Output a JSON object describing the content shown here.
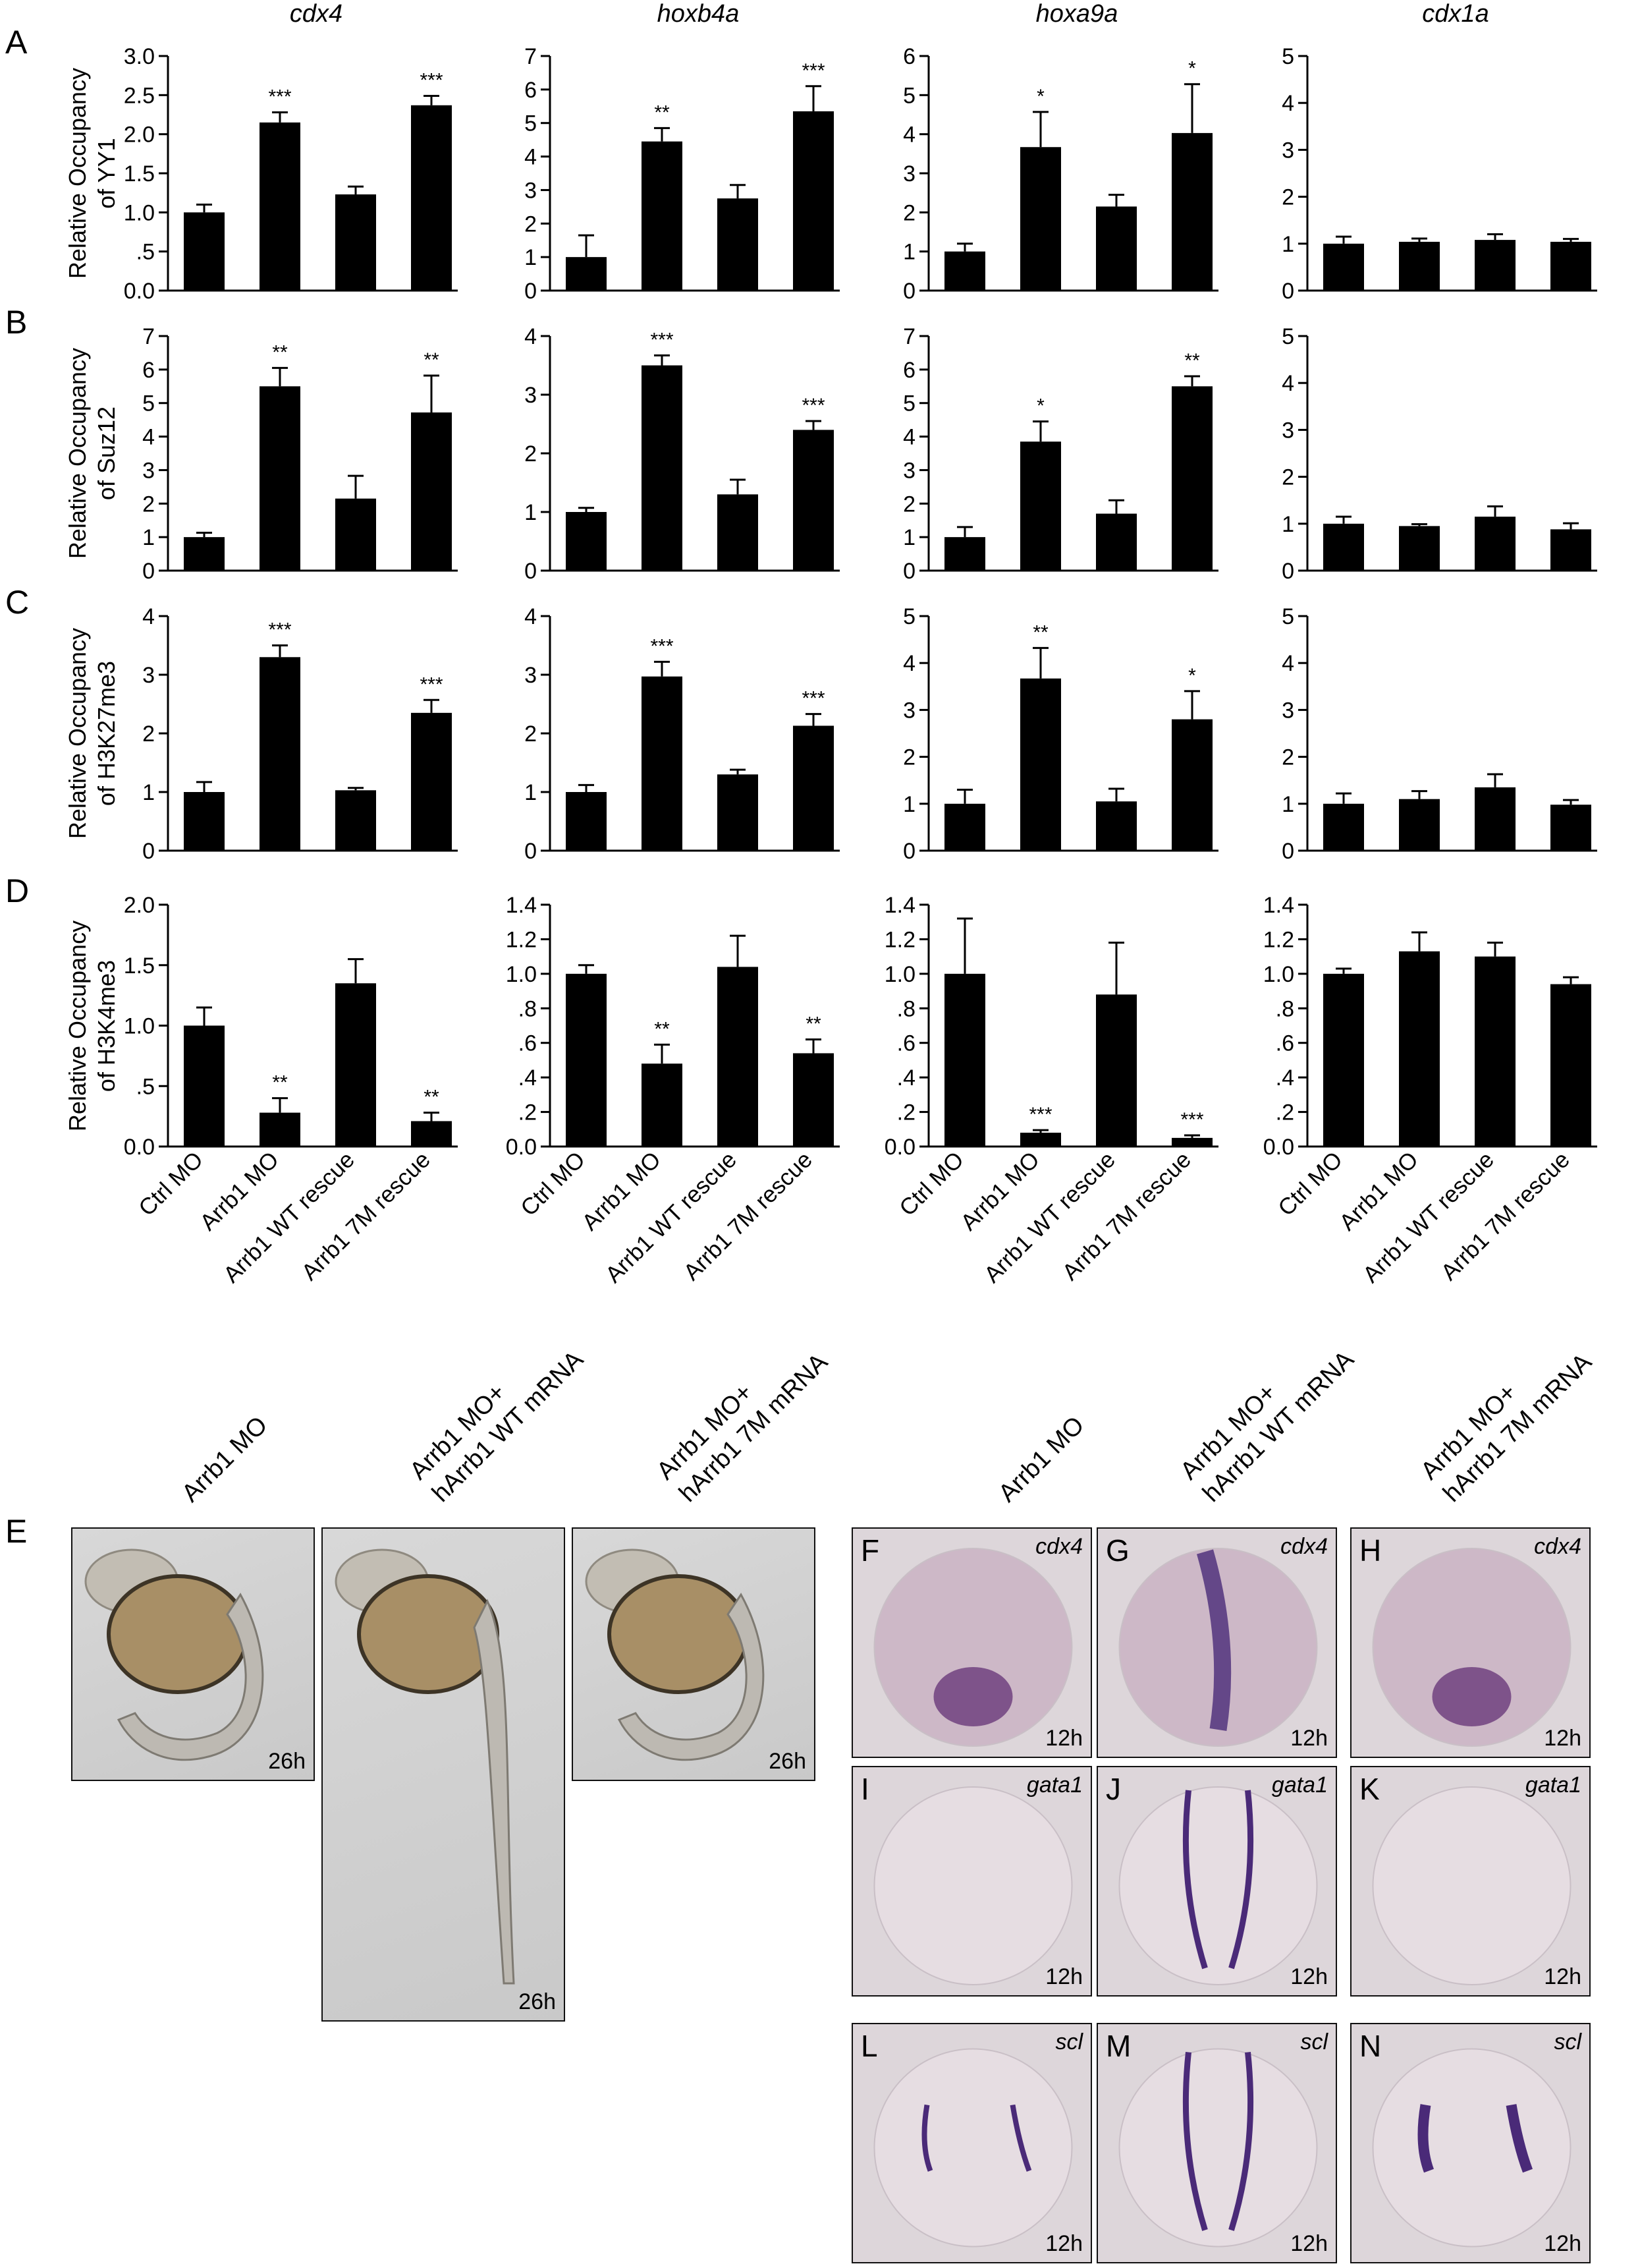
{
  "genes": [
    "cdx4",
    "hoxb4a",
    "hoxa9a",
    "cdx1a"
  ],
  "rows": [
    {
      "label": "A",
      "ylabel_lines": [
        "Relative Occupancy",
        "of YY1"
      ]
    },
    {
      "label": "B",
      "ylabel_lines": [
        "Relative Occupancy",
        "of Suz12"
      ]
    },
    {
      "label": "C",
      "ylabel_lines": [
        "Relative Occupancy",
        "of H3K27me3"
      ]
    },
    {
      "label": "D",
      "ylabel_lines": [
        "Relative Occupancy",
        "of H3K4me3"
      ]
    }
  ],
  "conditions": [
    "Ctrl MO",
    "Arrb1 MO",
    "Arrb1 WT rescue",
    "Arrb1 7M rescue"
  ],
  "chart_data": [
    {
      "type": "bar",
      "row": "A",
      "gene": "cdx4",
      "categories": [
        "Ctrl MO",
        "Arrb1 MO",
        "Arrb1 WT rescue",
        "Arrb1 7M rescue"
      ],
      "values": [
        1.0,
        2.15,
        1.23,
        2.37
      ],
      "errors": [
        0.1,
        0.13,
        0.1,
        0.12
      ],
      "sig": [
        "",
        "***",
        "",
        "***"
      ],
      "ylim": [
        0,
        3.0
      ],
      "ticks": [
        "0.0",
        ".5",
        "1.0",
        "1.5",
        "2.0",
        "2.5",
        "3.0"
      ]
    },
    {
      "type": "bar",
      "row": "A",
      "gene": "hoxb4a",
      "categories": [
        "Ctrl MO",
        "Arrb1 MO",
        "Arrb1 WT rescue",
        "Arrb1 7M rescue"
      ],
      "values": [
        1.0,
        4.45,
        2.75,
        5.35
      ],
      "errors": [
        0.65,
        0.4,
        0.4,
        0.75
      ],
      "sig": [
        "",
        "**",
        "",
        "***"
      ],
      "ylim": [
        0,
        7
      ],
      "ticks": [
        "0",
        "1",
        "2",
        "3",
        "4",
        "5",
        "6",
        "7"
      ]
    },
    {
      "type": "bar",
      "row": "A",
      "gene": "hoxa9a",
      "categories": [
        "Ctrl MO",
        "Arrb1 MO",
        "Arrb1 WT rescue",
        "Arrb1 7M rescue"
      ],
      "values": [
        1.0,
        3.67,
        2.15,
        4.03
      ],
      "errors": [
        0.2,
        0.9,
        0.3,
        1.25
      ],
      "sig": [
        "",
        "*",
        "",
        "*"
      ],
      "ylim": [
        0,
        6
      ],
      "ticks": [
        "0",
        "1",
        "2",
        "3",
        "4",
        "5",
        "6"
      ]
    },
    {
      "type": "bar",
      "row": "A",
      "gene": "cdx1a",
      "categories": [
        "Ctrl MO",
        "Arrb1 MO",
        "Arrb1 WT rescue",
        "Arrb1 7M rescue"
      ],
      "values": [
        1.0,
        1.04,
        1.08,
        1.04
      ],
      "errors": [
        0.15,
        0.07,
        0.12,
        0.06
      ],
      "sig": [
        "",
        "",
        "",
        ""
      ],
      "ylim": [
        0,
        5
      ],
      "ticks": [
        "0",
        "1",
        "2",
        "3",
        "4",
        "5"
      ]
    },
    {
      "type": "bar",
      "row": "B",
      "gene": "cdx4",
      "categories": [
        "Ctrl MO",
        "Arrb1 MO",
        "Arrb1 WT rescue",
        "Arrb1 7M rescue"
      ],
      "values": [
        1.0,
        5.5,
        2.15,
        4.72
      ],
      "errors": [
        0.13,
        0.55,
        0.68,
        1.1
      ],
      "sig": [
        "",
        "**",
        "",
        "**"
      ],
      "ylim": [
        0,
        7
      ],
      "ticks": [
        "0",
        "1",
        "2",
        "3",
        "4",
        "5",
        "6",
        "7"
      ]
    },
    {
      "type": "bar",
      "row": "B",
      "gene": "hoxb4a",
      "categories": [
        "Ctrl MO",
        "Arrb1 MO",
        "Arrb1 WT rescue",
        "Arrb1 7M rescue"
      ],
      "values": [
        1.0,
        3.5,
        1.3,
        2.4
      ],
      "errors": [
        0.07,
        0.17,
        0.25,
        0.15
      ],
      "sig": [
        "",
        "***",
        "",
        "***"
      ],
      "ylim": [
        0,
        4
      ],
      "ticks": [
        "0",
        "1",
        "2",
        "3",
        "4"
      ]
    },
    {
      "type": "bar",
      "row": "B",
      "gene": "hoxa9a",
      "categories": [
        "Ctrl MO",
        "Arrb1 MO",
        "Arrb1 WT rescue",
        "Arrb1 7M rescue"
      ],
      "values": [
        1.0,
        3.85,
        1.7,
        5.5
      ],
      "errors": [
        0.3,
        0.6,
        0.4,
        0.3
      ],
      "sig": [
        "",
        "*",
        "",
        "**"
      ],
      "ylim": [
        0,
        7
      ],
      "ticks": [
        "0",
        "1",
        "2",
        "3",
        "4",
        "5",
        "6",
        "7"
      ]
    },
    {
      "type": "bar",
      "row": "B",
      "gene": "cdx1a",
      "categories": [
        "Ctrl MO",
        "Arrb1 MO",
        "Arrb1 WT rescue",
        "Arrb1 7M rescue"
      ],
      "values": [
        1.0,
        0.95,
        1.15,
        0.88
      ],
      "errors": [
        0.15,
        0.04,
        0.22,
        0.13
      ],
      "sig": [
        "",
        "",
        "",
        ""
      ],
      "ylim": [
        0,
        5
      ],
      "ticks": [
        "0",
        "1",
        "2",
        "3",
        "4",
        "5"
      ]
    },
    {
      "type": "bar",
      "row": "C",
      "gene": "cdx4",
      "categories": [
        "Ctrl MO",
        "Arrb1 MO",
        "Arrb1 WT rescue",
        "Arrb1 7M rescue"
      ],
      "values": [
        1.0,
        3.3,
        1.03,
        2.35
      ],
      "errors": [
        0.17,
        0.2,
        0.04,
        0.22
      ],
      "sig": [
        "",
        "***",
        "",
        "***"
      ],
      "ylim": [
        0,
        4
      ],
      "ticks": [
        "0",
        "1",
        "2",
        "3",
        "4"
      ]
    },
    {
      "type": "bar",
      "row": "C",
      "gene": "hoxb4a",
      "categories": [
        "Ctrl MO",
        "Arrb1 MO",
        "Arrb1 WT rescue",
        "Arrb1 7M rescue"
      ],
      "values": [
        1.0,
        2.97,
        1.3,
        2.13
      ],
      "errors": [
        0.12,
        0.25,
        0.08,
        0.2
      ],
      "sig": [
        "",
        "***",
        "",
        "***"
      ],
      "ylim": [
        0,
        4
      ],
      "ticks": [
        "0",
        "1",
        "2",
        "3",
        "4"
      ]
    },
    {
      "type": "bar",
      "row": "C",
      "gene": "hoxa9a",
      "categories": [
        "Ctrl MO",
        "Arrb1 MO",
        "Arrb1 WT rescue",
        "Arrb1 7M rescue"
      ],
      "values": [
        1.0,
        3.67,
        1.05,
        2.8
      ],
      "errors": [
        0.3,
        0.65,
        0.27,
        0.6
      ],
      "sig": [
        "",
        "**",
        "",
        "*"
      ],
      "ylim": [
        0,
        5
      ],
      "ticks": [
        "0",
        "1",
        "2",
        "3",
        "4",
        "5"
      ]
    },
    {
      "type": "bar",
      "row": "C",
      "gene": "cdx1a",
      "categories": [
        "Ctrl MO",
        "Arrb1 MO",
        "Arrb1 WT rescue",
        "Arrb1 7M rescue"
      ],
      "values": [
        1.0,
        1.1,
        1.35,
        0.98
      ],
      "errors": [
        0.22,
        0.17,
        0.28,
        0.1
      ],
      "sig": [
        "",
        "",
        "",
        ""
      ],
      "ylim": [
        0,
        5
      ],
      "ticks": [
        "0",
        "1",
        "2",
        "3",
        "4",
        "5"
      ]
    },
    {
      "type": "bar",
      "row": "D",
      "gene": "cdx4",
      "categories": [
        "Ctrl MO",
        "Arrb1 MO",
        "Arrb1 WT rescue",
        "Arrb1 7M rescue"
      ],
      "values": [
        1.0,
        0.28,
        1.35,
        0.21
      ],
      "errors": [
        0.15,
        0.12,
        0.2,
        0.07
      ],
      "sig": [
        "",
        "**",
        "",
        "**"
      ],
      "ylim": [
        0,
        2.0
      ],
      "ticks": [
        "0.0",
        ".5",
        "1.0",
        "1.5",
        "2.0"
      ]
    },
    {
      "type": "bar",
      "row": "D",
      "gene": "hoxb4a",
      "categories": [
        "Ctrl MO",
        "Arrb1 MO",
        "Arrb1 WT rescue",
        "Arrb1 7M rescue"
      ],
      "values": [
        1.0,
        0.48,
        1.04,
        0.54
      ],
      "errors": [
        0.05,
        0.11,
        0.18,
        0.08
      ],
      "sig": [
        "",
        "**",
        "",
        "**"
      ],
      "ylim": [
        0,
        1.4
      ],
      "ticks": [
        "0.0",
        ".2",
        ".4",
        ".6",
        ".8",
        "1.0",
        "1.2",
        "1.4"
      ]
    },
    {
      "type": "bar",
      "row": "D",
      "gene": "hoxa9a",
      "categories": [
        "Ctrl MO",
        "Arrb1 MO",
        "Arrb1 WT rescue",
        "Arrb1 7M rescue"
      ],
      "values": [
        1.0,
        0.08,
        0.88,
        0.05
      ],
      "errors": [
        0.32,
        0.015,
        0.3,
        0.015
      ],
      "sig": [
        "",
        "***",
        "",
        "***"
      ],
      "ylim": [
        0,
        1.4
      ],
      "ticks": [
        "0.0",
        ".2",
        ".4",
        ".6",
        ".8",
        "1.0",
        "1.2",
        "1.4"
      ]
    },
    {
      "type": "bar",
      "row": "D",
      "gene": "cdx1a",
      "categories": [
        "Ctrl MO",
        "Arrb1 MO",
        "Arrb1 WT rescue",
        "Arrb1 7M rescue"
      ],
      "values": [
        1.0,
        1.13,
        1.1,
        0.94
      ],
      "errors": [
        0.03,
        0.11,
        0.08,
        0.04
      ],
      "sig": [
        "",
        "",
        "",
        ""
      ],
      "ylim": [
        0,
        1.4
      ],
      "ticks": [
        "0.0",
        ".2",
        ".4",
        ".6",
        ".8",
        "1.0",
        "1.2",
        "1.4"
      ]
    }
  ],
  "embryo_section": {
    "panel_label": "E",
    "columns": [
      {
        "lines": [
          "Arrb1 MO"
        ],
        "time": "26h"
      },
      {
        "lines": [
          "Arrb1 MO+",
          "hArrb1 WT mRNA"
        ],
        "time": "26h"
      },
      {
        "lines": [
          "Arrb1 MO+",
          "hArrb1 7M mRNA"
        ],
        "time": "26h"
      }
    ]
  },
  "ish_section": {
    "columns": [
      {
        "lines": [
          "Arrb1 MO"
        ]
      },
      {
        "lines": [
          "Arrb1 MO+",
          "hArrb1 WT mRNA"
        ]
      },
      {
        "lines": [
          "Arrb1 MO+",
          "hArrb1 7M mRNA"
        ]
      }
    ],
    "tiles": [
      {
        "label": "F",
        "gene": "cdx4",
        "time": "12h",
        "pattern": "posterior-spot"
      },
      {
        "label": "G",
        "gene": "cdx4",
        "time": "12h",
        "pattern": "midline-stripe"
      },
      {
        "label": "H",
        "gene": "cdx4",
        "time": "12h",
        "pattern": "posterior-spot"
      },
      {
        "label": "I",
        "gene": "gata1",
        "time": "12h",
        "pattern": "none"
      },
      {
        "label": "J",
        "gene": "gata1",
        "time": "12h",
        "pattern": "bilateral-long"
      },
      {
        "label": "K",
        "gene": "gata1",
        "time": "12h",
        "pattern": "none"
      },
      {
        "label": "L",
        "gene": "scl",
        "time": "12h",
        "pattern": "bilateral-short"
      },
      {
        "label": "M",
        "gene": "scl",
        "time": "12h",
        "pattern": "bilateral-long"
      },
      {
        "label": "N",
        "gene": "scl",
        "time": "12h",
        "pattern": "bilateral-short-strong"
      }
    ]
  }
}
